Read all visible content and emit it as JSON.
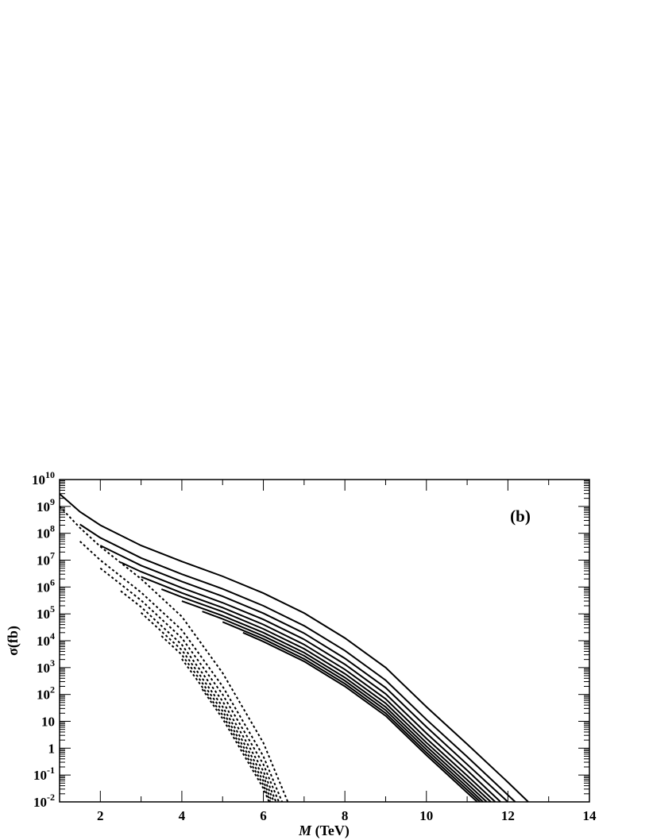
{
  "chart_data": {
    "type": "line",
    "annotation": "(b)",
    "ylabel": "σ(fb)",
    "xlabel_symbol": "M",
    "xlabel_unit": "(TeV)",
    "log_y": true,
    "minor_ticks": true,
    "xlim": [
      1,
      14
    ],
    "xticks": [
      2,
      4,
      6,
      8,
      10,
      12,
      14
    ],
    "ylim": [
      0.01,
      10000000000.0
    ],
    "yticks": [
      {
        "value": 0.01,
        "label": "10",
        "exponent": "-2"
      },
      {
        "value": 0.1,
        "label": "10",
        "exponent": "-1"
      },
      1,
      10,
      {
        "value": 100,
        "label": "10",
        "exponent": "2"
      },
      {
        "value": 1000,
        "label": "10",
        "exponent": "3"
      },
      {
        "value": 10000,
        "label": "10",
        "exponent": "4"
      },
      {
        "value": 100000,
        "label": "10",
        "exponent": "5"
      },
      {
        "value": 1000000,
        "label": "10",
        "exponent": "6"
      },
      {
        "value": 10000000,
        "label": "10",
        "exponent": "7"
      },
      {
        "value": 100000000,
        "label": "10",
        "exponent": "8"
      },
      {
        "value": 1000000000,
        "label": "10",
        "exponent": "9"
      },
      {
        "value": 10000000000,
        "label": "10",
        "exponent": "10"
      }
    ],
    "series": [
      {
        "color": "#000000",
        "dash": "solid",
        "x": [
          1,
          1.5,
          2,
          3,
          4,
          5,
          6,
          7,
          8,
          9,
          10,
          11,
          12,
          12.5
        ],
        "values": [
          2950000000.0,
          630000000.0,
          200000000.0,
          35000000.0,
          8900000.0,
          2500000.0,
          590000.0,
          107000.0,
          12600.0,
          1000,
          34.7,
          1.41,
          0.054,
          0.01
        ]
      },
      {
        "color": "#000000",
        "dash": "solid",
        "x": [
          1.5,
          2,
          3,
          4,
          5,
          6,
          7,
          8,
          9,
          10,
          11,
          12,
          12.18
        ],
        "values": [
          214000000.0,
          68000000.0,
          12000000.0,
          3000000.0,
          850000.0,
          200000.0,
          36000.0,
          4300.0,
          339,
          11.7,
          0.48,
          0.018,
          0.01
        ]
      },
      {
        "color": "#000000",
        "dash": "solid",
        "x": [
          2,
          3,
          4,
          5,
          6,
          7,
          8,
          9,
          10,
          11,
          12
        ],
        "values": [
          35000000.0,
          6300000.0,
          1600000.0,
          450000.0,
          105000.0,
          19000.0,
          2200.0,
          178,
          6.2,
          0.25,
          0.01
        ]
      },
      {
        "color": "#000000",
        "dash": "solid",
        "x": [
          2.5,
          3,
          4,
          5,
          6,
          7,
          8,
          9,
          10,
          11,
          11.82
        ],
        "values": [
          8300000.0,
          3700000.0,
          930000.0,
          260000.0,
          62000.0,
          11200.0,
          1320.0,
          105,
          3.6,
          0.15,
          0.01
        ]
      },
      {
        "color": "#000000",
        "dash": "solid",
        "x": [
          3,
          4,
          5,
          6,
          7,
          8,
          9,
          10,
          11,
          11.69
        ],
        "values": [
          2400000.0,
          600000.0,
          170000.0,
          40000.0,
          7200.0,
          851,
          68,
          2.3,
          0.095,
          0.01
        ]
      },
      {
        "color": "#000000",
        "dash": "solid",
        "x": [
          3.5,
          4,
          5,
          6,
          7,
          8,
          9,
          10,
          11,
          11.58
        ],
        "values": [
          830000.0,
          420000.0,
          120000.0,
          27500.0,
          5000.0,
          589,
          47,
          1.6,
          0.066,
          0.01
        ]
      },
      {
        "color": "#000000",
        "dash": "solid",
        "x": [
          4,
          5,
          6,
          7,
          8,
          9,
          10,
          11,
          11.48
        ],
        "values": [
          300000.0,
          85000.0,
          20000.0,
          3600.0,
          427,
          34,
          1.17,
          0.048,
          0.01
        ]
      },
      {
        "color": "#000000",
        "dash": "solid",
        "x": [
          4.5,
          5,
          6,
          7,
          8,
          9,
          10,
          11,
          11.39
        ],
        "values": [
          123000.0,
          65000.0,
          15000.0,
          2750.0,
          324,
          26,
          0.89,
          0.036,
          0.01
        ]
      },
      {
        "color": "#000000",
        "dash": "solid",
        "x": [
          5,
          6,
          7,
          8,
          9,
          10,
          11,
          11.32
        ],
        "values": [
          50000.0,
          11700.0,
          2100.0,
          251,
          20,
          0.69,
          0.028,
          0.01
        ]
      },
      {
        "color": "#000000",
        "dash": "solid",
        "x": [
          5.5,
          6,
          7,
          8,
          9,
          10,
          11,
          11.25
        ],
        "values": [
          20000.0,
          9300.0,
          1700.0,
          200,
          16,
          0.55,
          0.022,
          0.01
        ]
      },
      {
        "color": "#000000",
        "dash": "dotted",
        "x": [
          1,
          1.5,
          2,
          3,
          4,
          5,
          6,
          6.6
        ],
        "values": [
          1000000000.0,
          160000000.0,
          32000000.0,
          2000000.0,
          79000.0,
          631,
          1.58,
          0.01
        ]
      },
      {
        "color": "#000000",
        "dash": "dotted",
        "x": [
          1.5,
          2,
          3,
          4,
          5,
          6,
          6.46
        ],
        "values": [
          50000000.0,
          10000000.0,
          630000.0,
          25000.0,
          200,
          0.5,
          0.01
        ]
      },
      {
        "color": "#000000",
        "dash": "dotted",
        "x": [
          2,
          3,
          4,
          5,
          6,
          6.38
        ],
        "values": [
          5000000.0,
          320000.0,
          12600.0,
          100,
          0.25,
          0.01
        ]
      },
      {
        "color": "#000000",
        "dash": "dotted",
        "x": [
          2.5,
          3,
          4,
          5,
          6,
          6.31
        ],
        "values": [
          710000.0,
          180000.0,
          7100.0,
          56,
          0.14,
          0.01
        ]
      },
      {
        "color": "#000000",
        "dash": "dotted",
        "x": [
          3,
          4,
          5,
          6,
          6.26
        ],
        "values": [
          110000.0,
          4500.0,
          35,
          0.089,
          0.01
        ]
      },
      {
        "color": "#000000",
        "dash": "dotted",
        "x": [
          3.5,
          4,
          5,
          6,
          6.21
        ],
        "values": [
          15000.0,
          3000.0,
          24,
          0.06,
          0.01
        ]
      },
      {
        "color": "#000000",
        "dash": "dotted",
        "x": [
          4,
          5,
          6,
          6.17
        ],
        "values": [
          2100.0,
          17,
          0.043,
          0.01
        ]
      },
      {
        "color": "#000000",
        "dash": "dotted",
        "x": [
          4.5,
          5,
          6,
          6.14
        ],
        "values": [
          158,
          12.6,
          0.032,
          0.01
        ]
      }
    ]
  }
}
